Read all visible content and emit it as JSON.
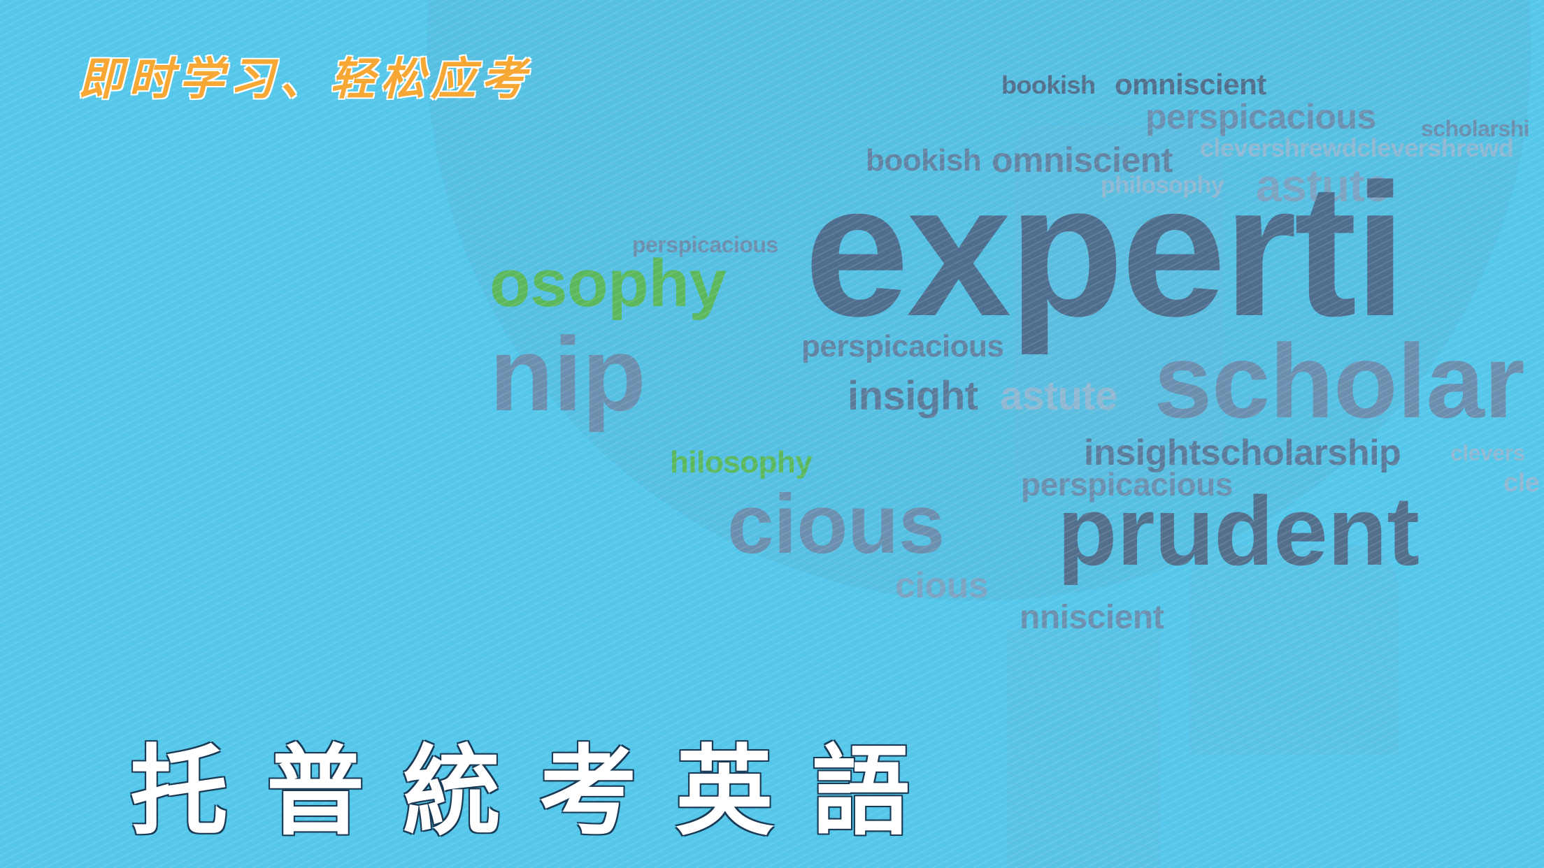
{
  "tagline": "即时学习、轻松应考",
  "title": "托普統考英語",
  "colors": {
    "background": "#54c7ea",
    "tagline": "#f7a733",
    "title": "#ffffff",
    "cloud_text": "#5a7b9a",
    "cloud_green": "#5cb85c"
  },
  "word_cloud": [
    {
      "text": "bookish"
    },
    {
      "text": "omniscient"
    },
    {
      "text": "perspicacious"
    },
    {
      "text": "scholarshi"
    },
    {
      "text": "bookish"
    },
    {
      "text": "omniscient"
    },
    {
      "text": "clevershrewdclevershrewd"
    },
    {
      "text": "philosophy"
    },
    {
      "text": "astute"
    },
    {
      "text": "perspicacious"
    },
    {
      "text": "osophy"
    },
    {
      "text": "experti"
    },
    {
      "text": "nip"
    },
    {
      "text": "perspicacious"
    },
    {
      "text": "insight"
    },
    {
      "text": "astute"
    },
    {
      "text": "scholar"
    },
    {
      "text": "hilosophy"
    },
    {
      "text": "insightscholarship"
    },
    {
      "text": "clevers"
    },
    {
      "text": "perspicacious"
    },
    {
      "text": "cle"
    },
    {
      "text": "cious"
    },
    {
      "text": "prudent"
    },
    {
      "text": "cious"
    },
    {
      "text": "nniscient"
    }
  ]
}
